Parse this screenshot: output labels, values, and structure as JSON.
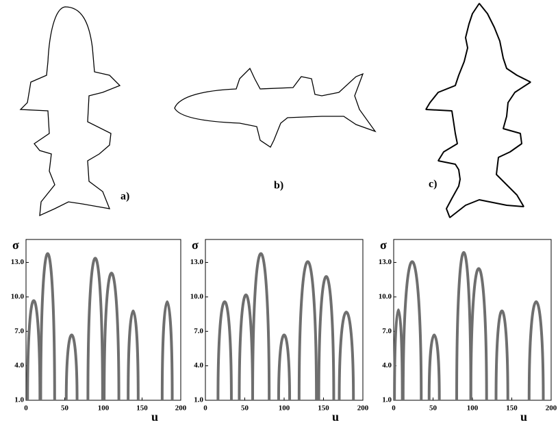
{
  "figures": [
    {
      "label": "a)"
    },
    {
      "label": "b)"
    },
    {
      "label": "c)"
    }
  ],
  "chart_data": [
    {
      "type": "arch",
      "x_label": "u",
      "y_label": "σ",
      "xlim": [
        0,
        200
      ],
      "ylim": [
        1,
        15
      ],
      "xticks": [
        0,
        50,
        100,
        150,
        200
      ],
      "yticks": [
        {
          "value": 1,
          "label": "1.0"
        },
        {
          "value": 4,
          "label": "4.0"
        },
        {
          "value": 7,
          "label": "7.0"
        },
        {
          "value": 10,
          "label": "10.0"
        },
        {
          "value": 13,
          "label": "13.0"
        }
      ],
      "x": [
        [
          2,
          18
        ],
        [
          19,
          37
        ],
        [
          52,
          66
        ],
        [
          80,
          99
        ],
        [
          101,
          120
        ],
        [
          132,
          145
        ],
        [
          176,
          189
        ]
      ],
      "values": [
        9.7,
        13.8,
        6.7,
        13.4,
        12.1,
        8.8,
        9.6
      ]
    },
    {
      "type": "arch",
      "x_label": "u",
      "y_label": "σ",
      "xlim": [
        0,
        200
      ],
      "ylim": [
        1,
        15
      ],
      "xticks": [
        0,
        50,
        100,
        150,
        200
      ],
      "yticks": [
        {
          "value": 1,
          "label": "1.0"
        },
        {
          "value": 4,
          "label": "4.0"
        },
        {
          "value": 7,
          "label": "7.0"
        },
        {
          "value": 10,
          "label": "10.0"
        },
        {
          "value": 13,
          "label": "13.0"
        }
      ],
      "x": [
        [
          16,
          33
        ],
        [
          43,
          60
        ],
        [
          60,
          81
        ],
        [
          93,
          107
        ],
        [
          119,
          141
        ],
        [
          144,
          163
        ],
        [
          170,
          188
        ]
      ],
      "values": [
        9.6,
        10.2,
        13.8,
        6.7,
        13.1,
        11.8,
        8.7
      ]
    },
    {
      "type": "arch",
      "x_label": "u",
      "y_label": "σ",
      "xlim": [
        0,
        200
      ],
      "ylim": [
        1,
        15
      ],
      "xticks": [
        0,
        50,
        100,
        150,
        200
      ],
      "yticks": [
        {
          "value": 1,
          "label": "1.0"
        },
        {
          "value": 4,
          "label": "4.0"
        },
        {
          "value": 7,
          "label": "7.0"
        },
        {
          "value": 10,
          "label": "10.0"
        },
        {
          "value": 13,
          "label": "13.0"
        }
      ],
      "x": [
        [
          1,
          11
        ],
        [
          12,
          35
        ],
        [
          45,
          58
        ],
        [
          80,
          98
        ],
        [
          98,
          118
        ],
        [
          130,
          145
        ],
        [
          172,
          190
        ]
      ],
      "values": [
        8.9,
        13.1,
        6.7,
        13.9,
        12.5,
        8.8,
        9.6
      ]
    }
  ]
}
